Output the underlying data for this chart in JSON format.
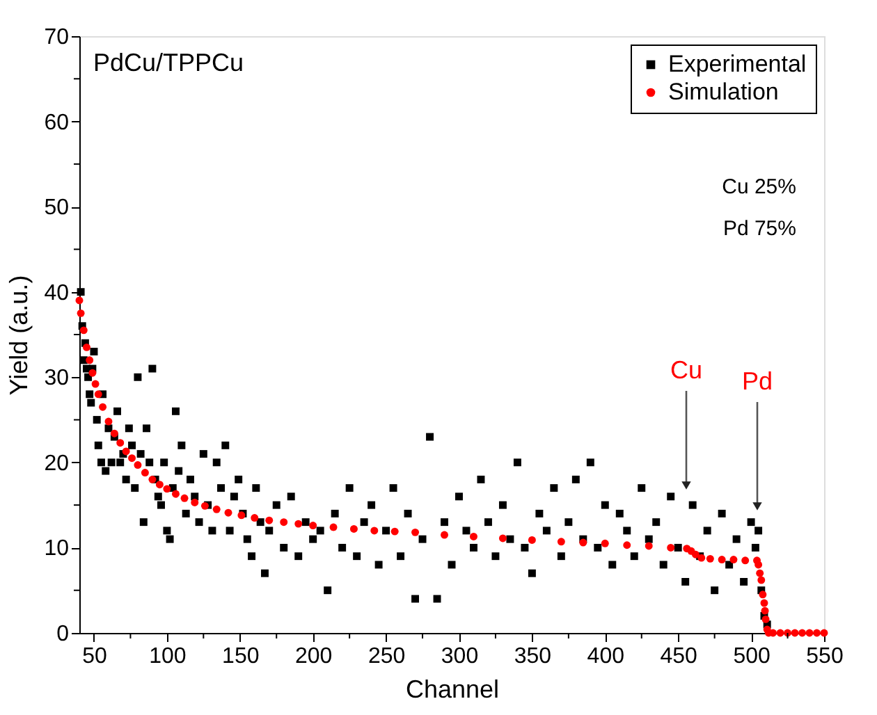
{
  "chart_data": {
    "type": "scatter",
    "xlabel": "Channel",
    "ylabel": "Yield (a.u.)",
    "xlim": [
      40,
      550
    ],
    "ylim": [
      0,
      70
    ],
    "xticks": [
      50,
      {
        "value": 75,
        "label": null
      },
      100,
      {
        "value": 125,
        "label": null
      },
      150,
      {
        "value": 175,
        "label": null
      },
      200,
      {
        "value": 225,
        "label": null
      },
      250,
      {
        "value": 275,
        "label": null
      },
      300,
      {
        "value": 325,
        "label": null
      },
      350,
      {
        "value": 375,
        "label": null
      },
      400,
      {
        "value": 425,
        "label": null
      },
      450,
      {
        "value": 475,
        "label": null
      },
      500,
      {
        "value": 525,
        "label": null
      },
      550
    ],
    "yticks": [
      0,
      {
        "value": 5,
        "label": null
      },
      10,
      {
        "value": 15,
        "label": null
      },
      20,
      {
        "value": 25,
        "label": null
      },
      30,
      {
        "value": 35,
        "label": null
      },
      40,
      {
        "value": 45,
        "label": null
      },
      50,
      {
        "value": 55,
        "label": null
      },
      60,
      {
        "value": 65,
        "label": null
      },
      70
    ],
    "grid": false,
    "legend": "top right",
    "series": [
      {
        "name": "Experimental",
        "color": "#000000",
        "marker": "square",
        "x": [
          41,
          42,
          43,
          44,
          45,
          46,
          47,
          48,
          49,
          50,
          52,
          53,
          55,
          56,
          58,
          60,
          62,
          64,
          66,
          68,
          70,
          72,
          74,
          76,
          78,
          80,
          82,
          84,
          86,
          88,
          90,
          92,
          94,
          96,
          98,
          100,
          102,
          104,
          106,
          108,
          110,
          113,
          116,
          119,
          122,
          125,
          128,
          131,
          134,
          137,
          140,
          143,
          146,
          149,
          152,
          155,
          158,
          161,
          164,
          167,
          170,
          175,
          180,
          185,
          190,
          195,
          200,
          205,
          210,
          215,
          220,
          225,
          230,
          235,
          240,
          245,
          250,
          255,
          260,
          265,
          270,
          275,
          280,
          285,
          290,
          295,
          300,
          305,
          310,
          315,
          320,
          325,
          330,
          335,
          340,
          345,
          350,
          355,
          360,
          365,
          370,
          375,
          380,
          385,
          390,
          395,
          400,
          405,
          410,
          415,
          420,
          425,
          430,
          435,
          440,
          445,
          450,
          455,
          460,
          465,
          470,
          475,
          480,
          485,
          490,
          495,
          500,
          503,
          505,
          507,
          509,
          511
        ],
        "values": [
          40,
          36,
          32,
          34,
          31,
          30,
          28,
          27,
          31,
          33,
          25,
          22,
          20,
          28,
          19,
          24,
          20,
          23,
          26,
          20,
          21,
          18,
          24,
          22,
          17,
          30,
          21,
          13,
          24,
          20,
          31,
          18,
          16,
          15,
          20,
          12,
          11,
          17,
          26,
          19,
          22,
          14,
          18,
          16,
          13,
          21,
          15,
          12,
          20,
          17,
          22,
          12,
          16,
          18,
          14,
          11,
          9,
          17,
          13,
          7,
          12,
          15,
          10,
          16,
          9,
          13,
          11,
          12,
          5,
          14,
          10,
          17,
          9,
          13,
          15,
          8,
          12,
          17,
          9,
          14,
          4,
          11,
          23,
          4,
          13,
          8,
          16,
          12,
          10,
          18,
          13,
          9,
          15,
          11,
          20,
          10,
          7,
          14,
          12,
          17,
          9,
          13,
          18,
          11,
          20,
          10,
          15,
          8,
          14,
          12,
          9,
          17,
          11,
          13,
          8,
          16,
          10,
          6,
          15,
          9,
          12,
          5,
          14,
          8,
          11,
          6,
          13,
          10,
          12,
          5,
          2,
          1
        ]
      },
      {
        "name": "Simulation",
        "color": "#ff0000",
        "marker": "circle",
        "x": [
          40,
          41,
          43,
          45,
          47,
          49,
          51,
          53,
          56,
          60,
          64,
          68,
          72,
          76,
          80,
          85,
          90,
          95,
          100,
          106,
          112,
          119,
          126,
          134,
          142,
          151,
          160,
          170,
          180,
          190,
          200,
          214,
          228,
          242,
          256,
          270,
          290,
          310,
          330,
          350,
          370,
          385,
          400,
          415,
          430,
          445,
          456,
          459,
          462,
          466,
          472,
          480,
          488,
          496,
          504,
          505,
          506,
          507,
          508,
          509,
          509.5,
          510,
          511,
          512,
          515,
          520,
          525,
          530,
          535,
          540,
          545,
          550
        ],
        "values": [
          39,
          37.5,
          35.5,
          33.5,
          32,
          30.5,
          29.2,
          28,
          26.5,
          24.8,
          23.4,
          22.3,
          21.3,
          20.5,
          19.7,
          18.8,
          18,
          17.4,
          16.9,
          16.3,
          15.8,
          15.3,
          14.9,
          14.5,
          14.1,
          13.8,
          13.5,
          13.2,
          13,
          12.8,
          12.6,
          12.4,
          12.2,
          12,
          11.9,
          11.8,
          11.5,
          11.3,
          11.1,
          10.9,
          10.7,
          10.6,
          10.5,
          10.3,
          10.2,
          10,
          9.9,
          9.6,
          9.2,
          8.8,
          8.7,
          8.6,
          8.6,
          8.5,
          8.5,
          8,
          7,
          6.2,
          4.5,
          3.5,
          2.6,
          1.6,
          0.4,
          0,
          0,
          0,
          0,
          0,
          0,
          0,
          0,
          0
        ]
      }
    ],
    "annotations": [
      "PdCu/TPPCu",
      "Cu 25%",
      "Pd 75%",
      "Cu",
      "Pd"
    ]
  }
}
